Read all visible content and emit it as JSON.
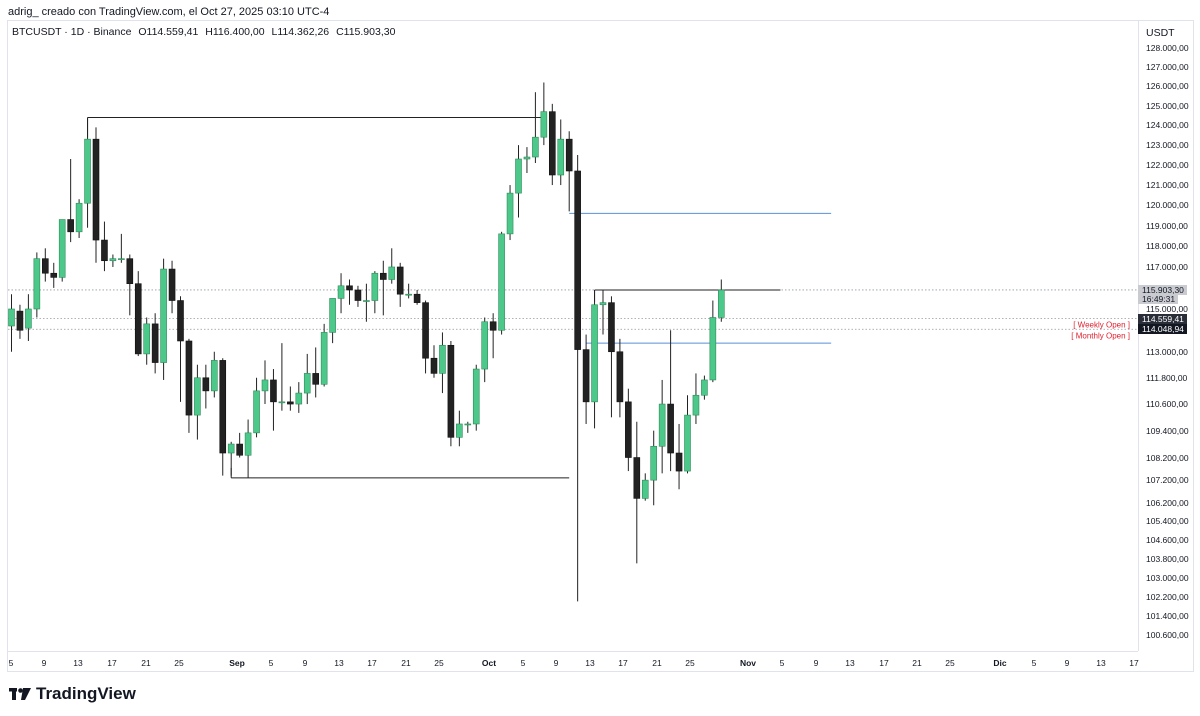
{
  "caption": "adrig_ creado con TradingView.com, el Oct 27, 2025 03:10 UTC-4",
  "legend": {
    "symbol": "BTCUSDT · 1D · Binance",
    "open": "O114.559,41",
    "high": "H116.400,00",
    "low": "L114.362,26",
    "close": "C115.903,30"
  },
  "currency": "USDT",
  "price_labels": [
    "128.000,00",
    "127.000,00",
    "126.000,00",
    "125.000,00",
    "124.000,00",
    "123.000,00",
    "122.000,00",
    "121.000,00",
    "120.000,00",
    "119.000,00",
    "118.000,00",
    "117.000,00",
    "115.000,00",
    "113.000,00",
    "111.800,00",
    "110.600,00",
    "109.400,00",
    "108.200,00",
    "107.200,00",
    "106.200,00",
    "105.400,00",
    "104.600,00",
    "103.800,00",
    "103.000,00",
    "102.200,00",
    "101.400,00",
    "100.600,00"
  ],
  "time_labels": [
    "5",
    "9",
    "13",
    "17",
    "21",
    "25",
    "Sep",
    "5",
    "9",
    "13",
    "17",
    "21",
    "25",
    "Oct",
    "5",
    "9",
    "13",
    "17",
    "21",
    "25",
    "Nov",
    "5",
    "9",
    "13",
    "17",
    "21",
    "25",
    "Dic",
    "5",
    "9",
    "13",
    "17"
  ],
  "badges": {
    "last_price": "115.903,30",
    "countdown": "16:49:31",
    "weekly_open_price": "114.559,41",
    "monthly_open_price": "114.048,94"
  },
  "tags": {
    "weekly_open": "[ Weekly Open ]",
    "monthly_open": "[ Monthly Open ]"
  },
  "brand": "TradingView",
  "colors": {
    "up": "#4cc88a",
    "down": "#222222",
    "level_line": "#222222",
    "blue_line": "#5b8fd6",
    "open_tag": "#e0202e"
  },
  "chart_data": {
    "type": "candlestick",
    "symbol": "BTCUSDT",
    "interval": "1D",
    "exchange": "Binance",
    "y_range": [
      100000,
      128600
    ],
    "candles": [
      {
        "date": "2025-08-04",
        "o": 114200,
        "h": 115700,
        "l": 113000,
        "c": 115000
      },
      {
        "date": "2025-08-05",
        "o": 114900,
        "h": 115200,
        "l": 113600,
        "c": 114000
      },
      {
        "date": "2025-08-06",
        "o": 114100,
        "h": 115700,
        "l": 113500,
        "c": 115000
      },
      {
        "date": "2025-08-07",
        "o": 115000,
        "h": 117700,
        "l": 114600,
        "c": 117400
      },
      {
        "date": "2025-08-08",
        "o": 117400,
        "h": 117900,
        "l": 116300,
        "c": 116700
      },
      {
        "date": "2025-08-09",
        "o": 116700,
        "h": 117200,
        "l": 116000,
        "c": 116500
      },
      {
        "date": "2025-08-10",
        "o": 116500,
        "h": 119300,
        "l": 116300,
        "c": 119300
      },
      {
        "date": "2025-08-11",
        "o": 119300,
        "h": 122300,
        "l": 118200,
        "c": 118700
      },
      {
        "date": "2025-08-12",
        "o": 118700,
        "h": 120300,
        "l": 118400,
        "c": 120100
      },
      {
        "date": "2025-08-13",
        "o": 120100,
        "h": 124400,
        "l": 118900,
        "c": 123300
      },
      {
        "date": "2025-08-14",
        "o": 123300,
        "h": 123900,
        "l": 117200,
        "c": 118300
      },
      {
        "date": "2025-08-15",
        "o": 118300,
        "h": 119200,
        "l": 116800,
        "c": 117300
      },
      {
        "date": "2025-08-16",
        "o": 117300,
        "h": 117600,
        "l": 117000,
        "c": 117400
      },
      {
        "date": "2025-08-17",
        "o": 117400,
        "h": 118600,
        "l": 117200,
        "c": 117400
      },
      {
        "date": "2025-08-18",
        "o": 117400,
        "h": 117600,
        "l": 114700,
        "c": 116200
      },
      {
        "date": "2025-08-19",
        "o": 116200,
        "h": 116800,
        "l": 112800,
        "c": 112900
      },
      {
        "date": "2025-08-20",
        "o": 112900,
        "h": 114600,
        "l": 112400,
        "c": 114300
      },
      {
        "date": "2025-08-21",
        "o": 114300,
        "h": 114800,
        "l": 112000,
        "c": 112500
      },
      {
        "date": "2025-08-22",
        "o": 112500,
        "h": 117400,
        "l": 111700,
        "c": 116900
      },
      {
        "date": "2025-08-23",
        "o": 116900,
        "h": 117300,
        "l": 114800,
        "c": 115400
      },
      {
        "date": "2025-08-24",
        "o": 115400,
        "h": 115600,
        "l": 110700,
        "c": 113500
      },
      {
        "date": "2025-08-25",
        "o": 113500,
        "h": 113600,
        "l": 109300,
        "c": 110100
      },
      {
        "date": "2025-08-26",
        "o": 110100,
        "h": 112400,
        "l": 109000,
        "c": 111800
      },
      {
        "date": "2025-08-27",
        "o": 111800,
        "h": 112400,
        "l": 110400,
        "c": 111200
      },
      {
        "date": "2025-08-28",
        "o": 111200,
        "h": 113000,
        "l": 110900,
        "c": 112600
      },
      {
        "date": "2025-08-29",
        "o": 112600,
        "h": 112700,
        "l": 107400,
        "c": 108400
      },
      {
        "date": "2025-08-30",
        "o": 108400,
        "h": 108900,
        "l": 107400,
        "c": 108800
      },
      {
        "date": "2025-08-31",
        "o": 108800,
        "h": 109300,
        "l": 108200,
        "c": 108300
      },
      {
        "date": "2025-09-01",
        "o": 108300,
        "h": 109900,
        "l": 107300,
        "c": 109300
      },
      {
        "date": "2025-09-02",
        "o": 109300,
        "h": 111800,
        "l": 109100,
        "c": 111200
      },
      {
        "date": "2025-09-03",
        "o": 111200,
        "h": 112600,
        "l": 110600,
        "c": 111700
      },
      {
        "date": "2025-09-04",
        "o": 111700,
        "h": 112200,
        "l": 109400,
        "c": 110700
      },
      {
        "date": "2025-09-05",
        "o": 110700,
        "h": 113400,
        "l": 110300,
        "c": 110700
      },
      {
        "date": "2025-09-06",
        "o": 110700,
        "h": 111400,
        "l": 110300,
        "c": 110600
      },
      {
        "date": "2025-09-07",
        "o": 110600,
        "h": 111600,
        "l": 110200,
        "c": 111100
      },
      {
        "date": "2025-09-08",
        "o": 111100,
        "h": 112900,
        "l": 110600,
        "c": 112000
      },
      {
        "date": "2025-09-09",
        "o": 112000,
        "h": 113200,
        "l": 110900,
        "c": 111500
      },
      {
        "date": "2025-09-10",
        "o": 111500,
        "h": 114300,
        "l": 111400,
        "c": 113900
      },
      {
        "date": "2025-09-11",
        "o": 113900,
        "h": 115500,
        "l": 113400,
        "c": 115500
      },
      {
        "date": "2025-09-12",
        "o": 115500,
        "h": 116700,
        "l": 114800,
        "c": 116100
      },
      {
        "date": "2025-09-13",
        "o": 116100,
        "h": 116400,
        "l": 115200,
        "c": 115900
      },
      {
        "date": "2025-09-14",
        "o": 115900,
        "h": 116100,
        "l": 115100,
        "c": 115400
      },
      {
        "date": "2025-09-15",
        "o": 115400,
        "h": 116200,
        "l": 114400,
        "c": 115400
      },
      {
        "date": "2025-09-16",
        "o": 115400,
        "h": 116800,
        "l": 114800,
        "c": 116700
      },
      {
        "date": "2025-09-17",
        "o": 116700,
        "h": 117300,
        "l": 114700,
        "c": 116400
      },
      {
        "date": "2025-09-18",
        "o": 116400,
        "h": 117900,
        "l": 116200,
        "c": 117000
      },
      {
        "date": "2025-09-19",
        "o": 117000,
        "h": 117200,
        "l": 115100,
        "c": 115700
      },
      {
        "date": "2025-09-20",
        "o": 115700,
        "h": 116200,
        "l": 115500,
        "c": 115700
      },
      {
        "date": "2025-09-21",
        "o": 115700,
        "h": 115900,
        "l": 115200,
        "c": 115300
      },
      {
        "date": "2025-09-22",
        "o": 115300,
        "h": 115400,
        "l": 112000,
        "c": 112700
      },
      {
        "date": "2025-09-23",
        "o": 112700,
        "h": 113300,
        "l": 111800,
        "c": 112000
      },
      {
        "date": "2025-09-24",
        "o": 112000,
        "h": 113900,
        "l": 111100,
        "c": 113300
      },
      {
        "date": "2025-09-25",
        "o": 113300,
        "h": 113500,
        "l": 108700,
        "c": 109100
      },
      {
        "date": "2025-09-26",
        "o": 109100,
        "h": 110300,
        "l": 108700,
        "c": 109700
      },
      {
        "date": "2025-09-27",
        "o": 109700,
        "h": 109800,
        "l": 109300,
        "c": 109700
      },
      {
        "date": "2025-09-28",
        "o": 109700,
        "h": 112400,
        "l": 109400,
        "c": 112200
      },
      {
        "date": "2025-09-29",
        "o": 112200,
        "h": 114600,
        "l": 111600,
        "c": 114400
      },
      {
        "date": "2025-09-30",
        "o": 114400,
        "h": 114800,
        "l": 112700,
        "c": 114000
      },
      {
        "date": "2025-10-01",
        "o": 114000,
        "h": 118700,
        "l": 113800,
        "c": 118600
      },
      {
        "date": "2025-10-02",
        "o": 118600,
        "h": 121000,
        "l": 118300,
        "c": 120600
      },
      {
        "date": "2025-10-03",
        "o": 120600,
        "h": 123000,
        "l": 119400,
        "c": 122300
      },
      {
        "date": "2025-10-04",
        "o": 122300,
        "h": 122900,
        "l": 121600,
        "c": 122400
      },
      {
        "date": "2025-10-05",
        "o": 122400,
        "h": 125700,
        "l": 122100,
        "c": 123400
      },
      {
        "date": "2025-10-06",
        "o": 123400,
        "h": 126200,
        "l": 123000,
        "c": 124700
      },
      {
        "date": "2025-10-07",
        "o": 124700,
        "h": 125100,
        "l": 121000,
        "c": 121500
      },
      {
        "date": "2025-10-08",
        "o": 121500,
        "h": 124300,
        "l": 121000,
        "c": 123300
      },
      {
        "date": "2025-10-09",
        "o": 123300,
        "h": 123700,
        "l": 119700,
        "c": 121700
      },
      {
        "date": "2025-10-10",
        "o": 121700,
        "h": 122500,
        "l": 102000,
        "c": 113100
      },
      {
        "date": "2025-10-11",
        "o": 113100,
        "h": 113800,
        "l": 109700,
        "c": 110700
      },
      {
        "date": "2025-10-12",
        "o": 110700,
        "h": 115900,
        "l": 109500,
        "c": 115200
      },
      {
        "date": "2025-10-13",
        "o": 115200,
        "h": 115900,
        "l": 113800,
        "c": 115300
      },
      {
        "date": "2025-10-14",
        "o": 115300,
        "h": 115600,
        "l": 110000,
        "c": 113000
      },
      {
        "date": "2025-10-15",
        "o": 113000,
        "h": 113600,
        "l": 110000,
        "c": 110700
      },
      {
        "date": "2025-10-16",
        "o": 110700,
        "h": 111300,
        "l": 107600,
        "c": 108200
      },
      {
        "date": "2025-10-17",
        "o": 108200,
        "h": 109800,
        "l": 103600,
        "c": 106400
      },
      {
        "date": "2025-10-18",
        "o": 106400,
        "h": 107500,
        "l": 106300,
        "c": 107200
      },
      {
        "date": "2025-10-19",
        "o": 107200,
        "h": 109400,
        "l": 106100,
        "c": 108700
      },
      {
        "date": "2025-10-20",
        "o": 108700,
        "h": 111700,
        "l": 107500,
        "c": 110600
      },
      {
        "date": "2025-10-21",
        "o": 110600,
        "h": 114000,
        "l": 107600,
        "c": 108400
      },
      {
        "date": "2025-10-22",
        "o": 108400,
        "h": 109700,
        "l": 106800,
        "c": 107600
      },
      {
        "date": "2025-10-23",
        "o": 107600,
        "h": 111000,
        "l": 107500,
        "c": 110100
      },
      {
        "date": "2025-10-24",
        "o": 110100,
        "h": 112000,
        "l": 109700,
        "c": 111000
      },
      {
        "date": "2025-10-25",
        "o": 111000,
        "h": 111900,
        "l": 110800,
        "c": 111700
      },
      {
        "date": "2025-10-26",
        "o": 111700,
        "h": 115400,
        "l": 111600,
        "c": 114600
      },
      {
        "date": "2025-10-27",
        "o": 114600,
        "h": 116400,
        "l": 114400,
        "c": 115900
      }
    ],
    "horizontal_lines": [
      {
        "price": 124400,
        "from": "2025-08-13",
        "to": "2025-10-06",
        "color": "black"
      },
      {
        "price": 107300,
        "from": "2025-08-30",
        "to": "2025-10-09",
        "color": "black"
      },
      {
        "price": 119600,
        "from": "2025-10-09",
        "to": "2025-11-09",
        "color": "blue"
      },
      {
        "price": 115900,
        "from": "2025-10-12",
        "to": "2025-11-03",
        "color": "black"
      },
      {
        "price": 113400,
        "from": "2025-10-11",
        "to": "2025-11-09",
        "color": "blue"
      }
    ],
    "dotted_lines": [
      {
        "name": "last_price",
        "price": 115903.3
      },
      {
        "name": "weekly_open",
        "price": 114559.41
      },
      {
        "name": "monthly_open",
        "price": 114048.94
      }
    ],
    "grid": false,
    "price_scale": "log"
  }
}
